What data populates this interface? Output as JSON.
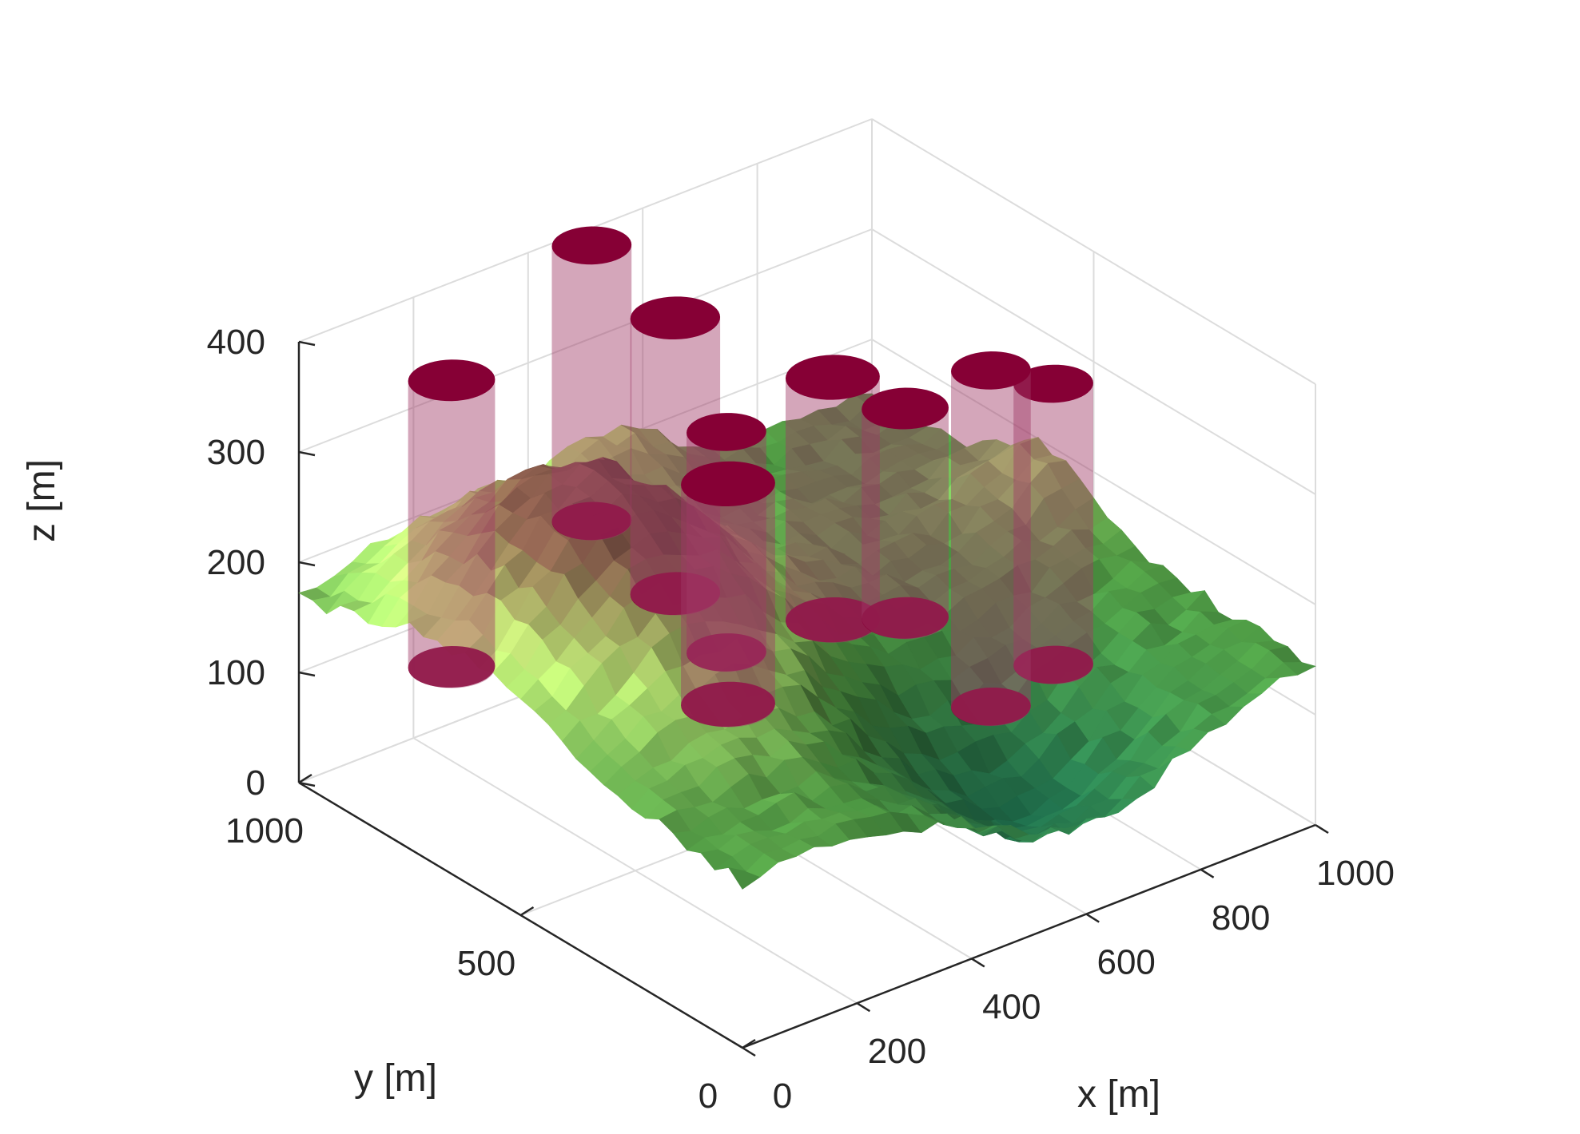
{
  "chart_data": {
    "type": "surface3d",
    "title": "",
    "xlabel": "x [m]",
    "ylabel": "y [m]",
    "zlabel": "z [m]",
    "xlim": [
      0,
      1000
    ],
    "ylim": [
      0,
      1000
    ],
    "zlim": [
      0,
      400
    ],
    "xticks": [
      0,
      200,
      400,
      600,
      800,
      1000
    ],
    "yticks": [
      0,
      500,
      1000
    ],
    "zticks": [
      0,
      100,
      200,
      300,
      400
    ],
    "grid": true,
    "colors": {
      "cylinder_top": "#860035",
      "cylinder_body": "#a03a66",
      "terrain_low": "#1e6b4a",
      "terrain_mid": "#4f9a44",
      "terrain_high": "#b4e070",
      "terrain_peak": "#7a5244",
      "grid": "#dcdcdc",
      "axis": "#262626"
    },
    "terrain": {
      "base_elevation": 150,
      "features": [
        {
          "kind": "peak",
          "x": 250,
          "y": 650,
          "height": 310
        },
        {
          "kind": "ridge",
          "x": 550,
          "y": 1000,
          "height": 200
        },
        {
          "kind": "ridge",
          "x": 1000,
          "y": 600,
          "height": 200
        },
        {
          "kind": "valley",
          "x": 600,
          "y": 150,
          "depth": 100
        }
      ]
    },
    "cylinders": [
      {
        "x": 480,
        "y": 960,
        "z_bottom": 150,
        "z_top": 400,
        "radius": 55
      },
      {
        "x": 440,
        "y": 720,
        "z_bottom": 150,
        "z_top": 400,
        "radius": 62
      },
      {
        "x": 220,
        "y": 940,
        "z_bottom": 75,
        "z_top": 335,
        "radius": 60
      },
      {
        "x": 390,
        "y": 540,
        "z_bottom": 150,
        "z_top": 350,
        "radius": 55
      },
      {
        "x": 560,
        "y": 520,
        "z_bottom": 150,
        "z_top": 370,
        "radius": 65
      },
      {
        "x": 720,
        "y": 370,
        "z_bottom": 75,
        "z_top": 380,
        "radius": 55
      },
      {
        "x": 300,
        "y": 420,
        "z_bottom": 150,
        "z_top": 350,
        "radius": 65
      },
      {
        "x": 640,
        "y": 460,
        "z_bottom": 150,
        "z_top": 340,
        "radius": 60
      },
      {
        "x": 860,
        "y": 410,
        "z_bottom": 75,
        "z_top": 330,
        "radius": 55
      }
    ]
  }
}
